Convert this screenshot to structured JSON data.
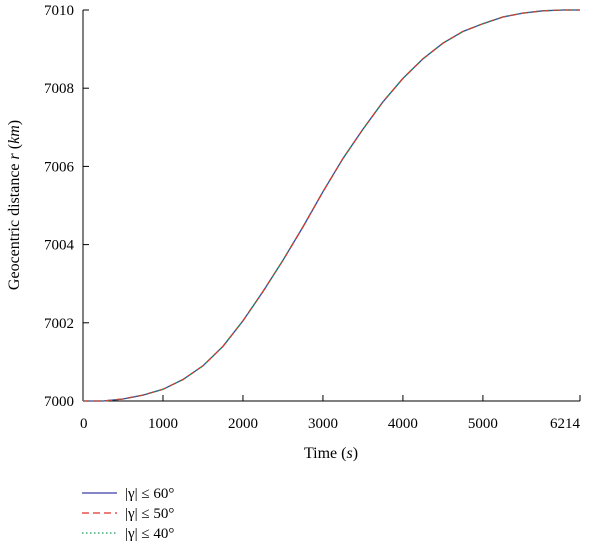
{
  "chart_data": {
    "type": "line",
    "title": "",
    "xlabel": "Time",
    "xlabel_unit": "s",
    "ylabel": "Geocentric distance",
    "ylabel_var": "r",
    "ylabel_unit": "km",
    "xlim": [
      0,
      6214
    ],
    "ylim": [
      7000,
      7010
    ],
    "x_ticks": [
      "0",
      "1000",
      "2000",
      "3000",
      "4000",
      "5000",
      "6214"
    ],
    "x_tick_values": [
      0,
      1000,
      2000,
      3000,
      4000,
      5000,
      6214
    ],
    "y_ticks": [
      "7000",
      "7002",
      "7004",
      "7006",
      "7008",
      "7010"
    ],
    "y_tick_values": [
      7000,
      7002,
      7004,
      7006,
      7008,
      7010
    ],
    "grid": false,
    "legend_position": "below-left",
    "x": [
      0,
      250,
      500,
      750,
      1000,
      1250,
      1500,
      1750,
      2000,
      2250,
      2500,
      2750,
      3000,
      3250,
      3500,
      3750,
      4000,
      4250,
      4500,
      4750,
      5000,
      5250,
      5500,
      5750,
      6000,
      6214
    ],
    "series": [
      {
        "name": "|γ| ≤ 60°",
        "color": "#3b3fa8",
        "style": "solid",
        "values": [
          7000.0,
          7000.0,
          7000.05,
          7000.15,
          7000.3,
          7000.55,
          7000.9,
          7001.4,
          7002.05,
          7002.8,
          7003.6,
          7004.45,
          7005.35,
          7006.2,
          7006.95,
          7007.65,
          7008.25,
          7008.75,
          7009.15,
          7009.45,
          7009.65,
          7009.82,
          7009.92,
          7009.98,
          7010.0,
          7010.0
        ]
      },
      {
        "name": "|γ| ≤ 50°",
        "color": "#e0302a",
        "style": "dashed",
        "values": [
          7000.0,
          7000.0,
          7000.05,
          7000.15,
          7000.3,
          7000.55,
          7000.9,
          7001.4,
          7002.05,
          7002.8,
          7003.6,
          7004.45,
          7005.35,
          7006.2,
          7006.95,
          7007.65,
          7008.25,
          7008.75,
          7009.15,
          7009.45,
          7009.65,
          7009.82,
          7009.92,
          7009.98,
          7010.0,
          7010.0
        ]
      },
      {
        "name": "|γ| ≤ 40°",
        "color": "#1a9a5a",
        "style": "dotted",
        "values": [
          7000.0,
          7000.0,
          7000.05,
          7000.15,
          7000.3,
          7000.55,
          7000.9,
          7001.4,
          7002.05,
          7002.8,
          7003.6,
          7004.45,
          7005.35,
          7006.2,
          7006.95,
          7007.65,
          7008.25,
          7008.75,
          7009.15,
          7009.45,
          7009.65,
          7009.82,
          7009.92,
          7009.98,
          7010.0,
          7010.0
        ]
      }
    ]
  }
}
